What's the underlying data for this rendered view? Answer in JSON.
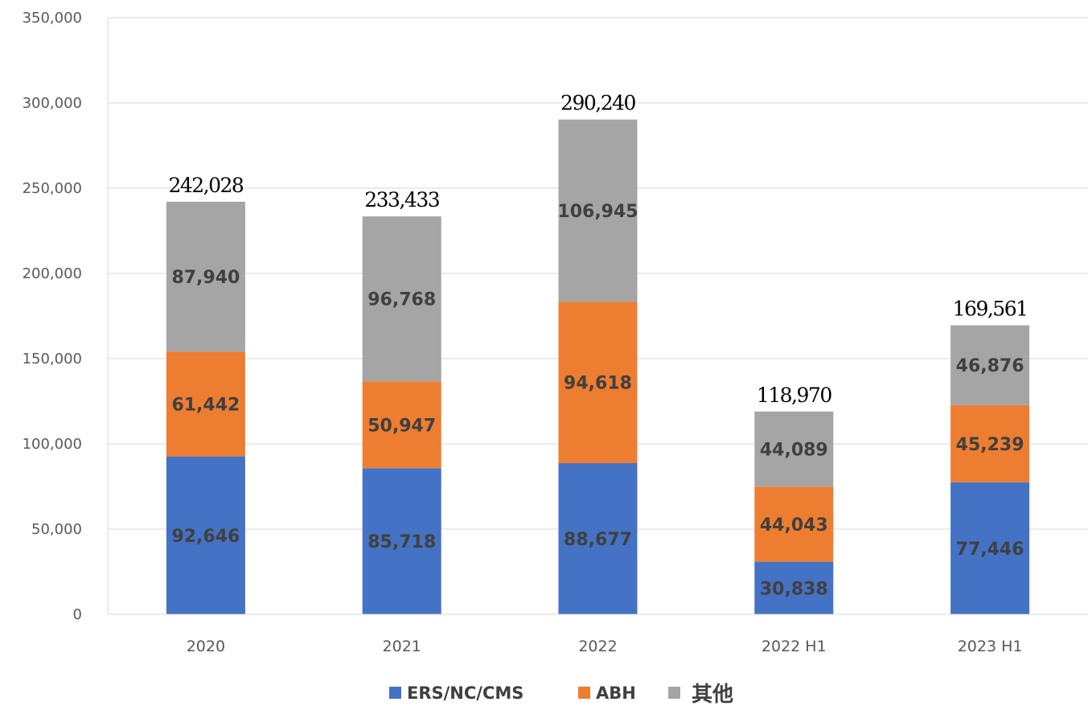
{
  "chart_data": {
    "type": "bar",
    "stacked": true,
    "categories": [
      "2020",
      "2021",
      "2022",
      "2022 H1",
      "2023 H1"
    ],
    "series": [
      {
        "name": "ERS/NC/CMS",
        "color": "#4472C4",
        "values": [
          92646,
          85718,
          88677,
          30838,
          77446
        ]
      },
      {
        "name": "ABH",
        "color": "#ED7D31",
        "values": [
          61442,
          50947,
          94618,
          44043,
          45239
        ]
      },
      {
        "name": "其他",
        "color": "#A5A5A5",
        "values": [
          87940,
          96768,
          106945,
          44089,
          46876
        ]
      }
    ],
    "segment_labels": [
      [
        "92,646",
        "85,718",
        "88,677",
        "30,838",
        "77,446"
      ],
      [
        "61,442",
        "50,947",
        "94,618",
        "44,043",
        "45,239"
      ],
      [
        "87,940",
        "96,768",
        "106,945",
        "44,089",
        "46,876"
      ]
    ],
    "totals": [
      242028,
      233433,
      290240,
      118970,
      169561
    ],
    "total_labels": [
      "242,028",
      "233,433",
      "290,240",
      "118,970",
      "169,561"
    ],
    "ylim": [
      0,
      350000
    ],
    "yticks": [
      0,
      50000,
      100000,
      150000,
      200000,
      250000,
      300000,
      350000
    ],
    "ytick_labels": [
      "0",
      "50,000",
      "100,000",
      "150,000",
      "200,000",
      "250,000",
      "300,000",
      "350,000"
    ],
    "grid": true,
    "legend_position": "bottom",
    "title": "",
    "xlabel": "",
    "ylabel": ""
  }
}
